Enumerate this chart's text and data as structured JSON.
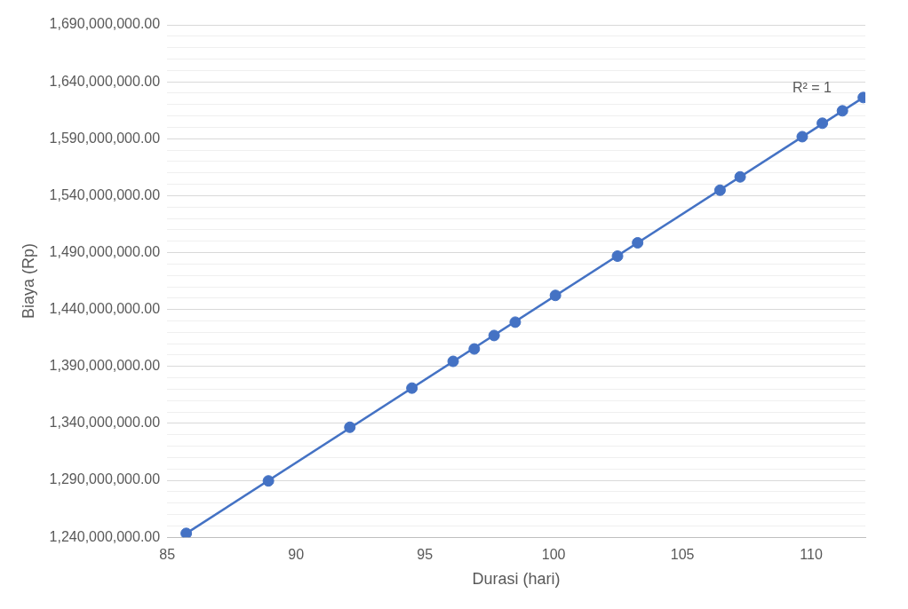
{
  "chart_data": {
    "type": "scatter",
    "xlabel": "Durasi (hari)",
    "ylabel": "Biaya (Rp)",
    "x": [
      85.74,
      88.93,
      92.09,
      94.5,
      96.1,
      96.92,
      97.69,
      98.51,
      100.07,
      102.48,
      103.26,
      106.46,
      107.24,
      109.65,
      110.43,
      111.21,
      112.02
    ],
    "series": [
      {
        "color": "#4472c4",
        "marker": "circle",
        "values": [
          1243400000,
          1289500000,
          1336600000,
          1371000000,
          1394500000,
          1405400000,
          1417200000,
          1428900000,
          1452400000,
          1486900000,
          1498600000,
          1544800000,
          1556500000,
          1591800000,
          1603600000,
          1614500000,
          1626200000
        ]
      },
      {
        "type": "line",
        "marker": "none",
        "color": "#4472c4",
        "x": [
          85.74,
          112.02
        ],
        "values": [
          1243400000,
          1626200000
        ]
      }
    ],
    "xlim": [
      85,
      112.1
    ],
    "xticks": [
      85,
      90,
      95,
      100,
      105,
      110
    ],
    "ylim": [
      1240000000,
      1690000000
    ],
    "yticks": [
      {
        "value": 1240000000,
        "label": "1,240,000,000.00"
      },
      {
        "value": 1250000000,
        "label": null
      },
      {
        "value": 1260000000,
        "label": null
      },
      {
        "value": 1270000000,
        "label": null
      },
      {
        "value": 1280000000,
        "label": null
      },
      {
        "value": 1290000000,
        "label": "1,290,000,000.00"
      },
      {
        "value": 1300000000,
        "label": null
      },
      {
        "value": 1310000000,
        "label": null
      },
      {
        "value": 1320000000,
        "label": null
      },
      {
        "value": 1330000000,
        "label": null
      },
      {
        "value": 1340000000,
        "label": "1,340,000,000.00"
      },
      {
        "value": 1350000000,
        "label": null
      },
      {
        "value": 1360000000,
        "label": null
      },
      {
        "value": 1370000000,
        "label": null
      },
      {
        "value": 1380000000,
        "label": null
      },
      {
        "value": 1390000000,
        "label": "1,390,000,000.00"
      },
      {
        "value": 1400000000,
        "label": null
      },
      {
        "value": 1410000000,
        "label": null
      },
      {
        "value": 1420000000,
        "label": null
      },
      {
        "value": 1430000000,
        "label": null
      },
      {
        "value": 1440000000,
        "label": "1,440,000,000.00"
      },
      {
        "value": 1450000000,
        "label": null
      },
      {
        "value": 1460000000,
        "label": null
      },
      {
        "value": 1470000000,
        "label": null
      },
      {
        "value": 1480000000,
        "label": null
      },
      {
        "value": 1490000000,
        "label": "1,490,000,000.00"
      },
      {
        "value": 1500000000,
        "label": null
      },
      {
        "value": 1510000000,
        "label": null
      },
      {
        "value": 1520000000,
        "label": null
      },
      {
        "value": 1530000000,
        "label": null
      },
      {
        "value": 1540000000,
        "label": "1,540,000,000.00"
      },
      {
        "value": 1550000000,
        "label": null
      },
      {
        "value": 1560000000,
        "label": null
      },
      {
        "value": 1570000000,
        "label": null
      },
      {
        "value": 1580000000,
        "label": null
      },
      {
        "value": 1590000000,
        "label": "1,590,000,000.00"
      },
      {
        "value": 1600000000,
        "label": null
      },
      {
        "value": 1610000000,
        "label": null
      },
      {
        "value": 1620000000,
        "label": null
      },
      {
        "value": 1630000000,
        "label": null
      },
      {
        "value": 1640000000,
        "label": "1,640,000,000.00"
      },
      {
        "value": 1650000000,
        "label": null
      },
      {
        "value": 1660000000,
        "label": null
      },
      {
        "value": 1670000000,
        "label": null
      },
      {
        "value": 1680000000,
        "label": null
      },
      {
        "value": 1690000000,
        "label": "1,690,000,000.00"
      }
    ],
    "grid": "y",
    "legend": false,
    "line_style": "solid",
    "annotations": [
      "R² = 1"
    ]
  }
}
